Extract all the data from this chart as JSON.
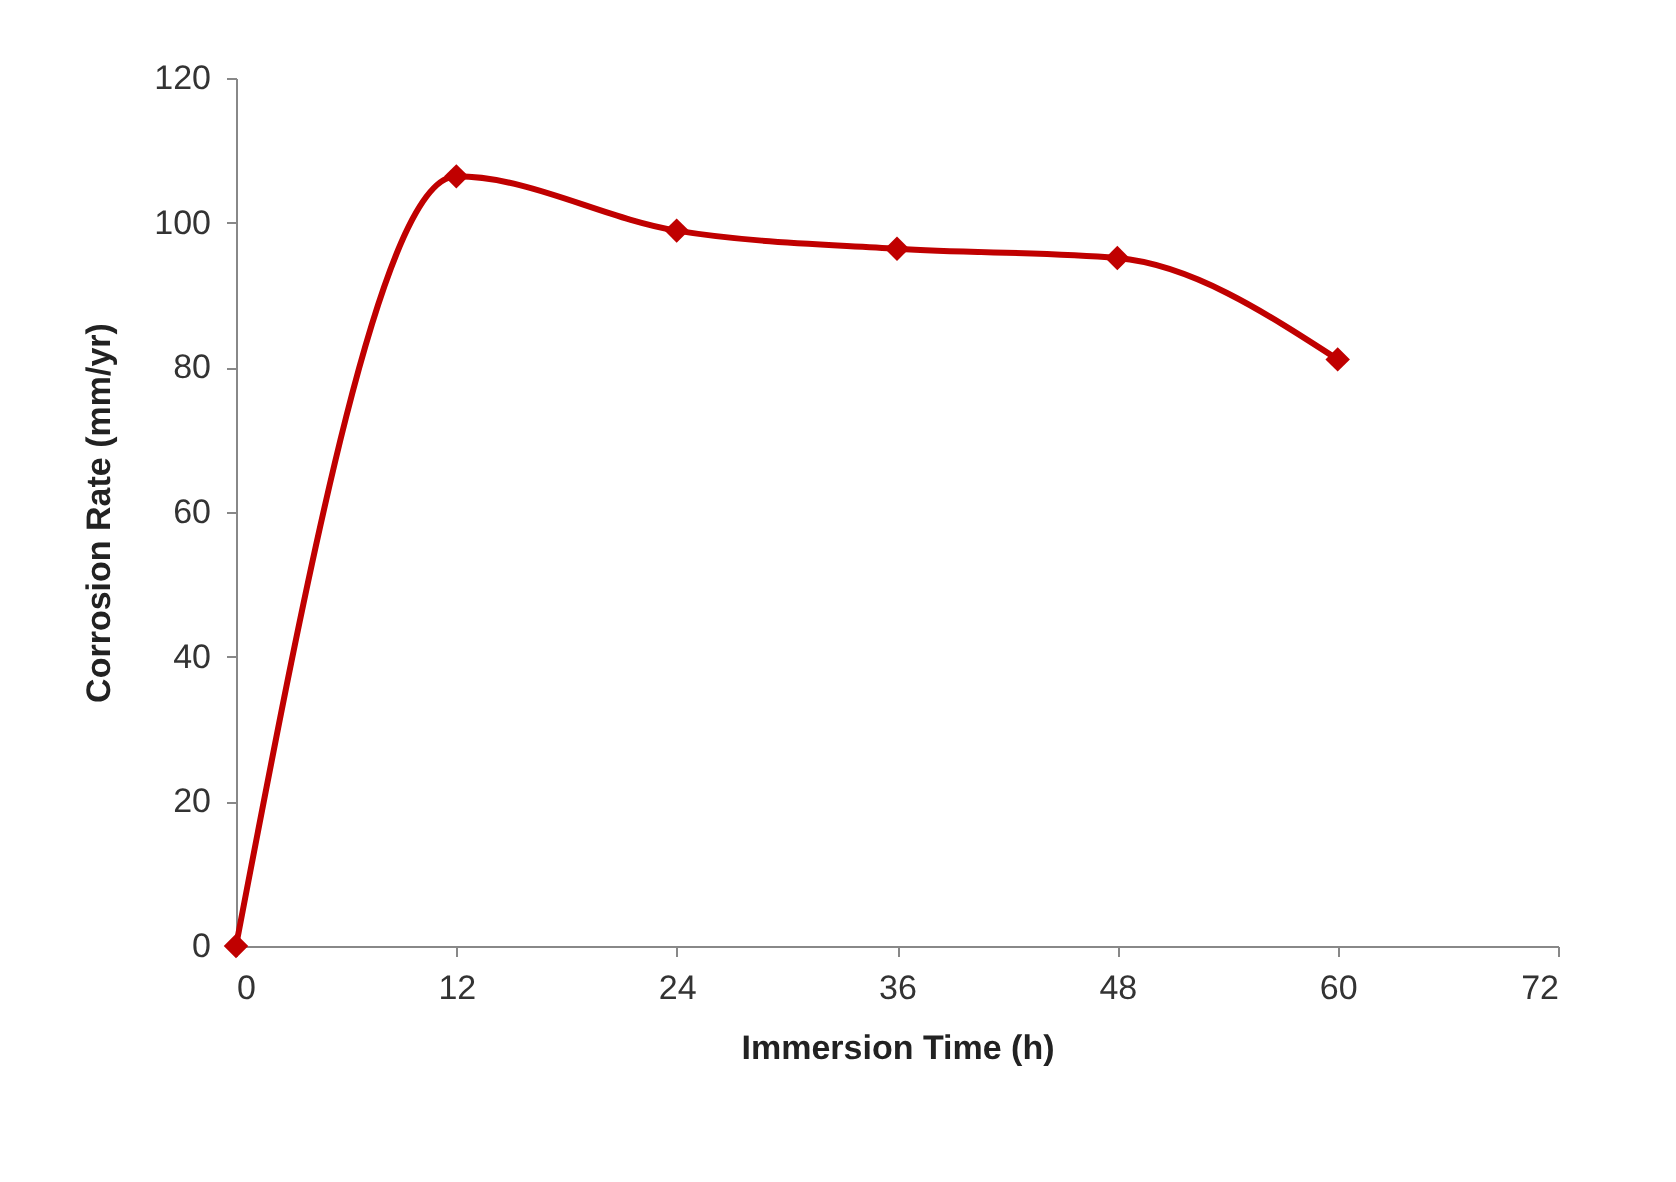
{
  "chart_data": {
    "type": "line",
    "xlabel": "Immersion Time (h)",
    "ylabel": "Corrosion Rate (mm/yr)",
    "x": [
      0,
      12,
      24,
      36,
      48,
      60
    ],
    "series": [
      {
        "color": "#c00000",
        "values": [
          0,
          106.4,
          98.9,
          96.4,
          95.1,
          81.1
        ]
      }
    ],
    "xlim": [
      0,
      72
    ],
    "xticks": [
      0,
      12,
      24,
      36,
      48,
      60,
      72
    ],
    "ylim": [
      0,
      120
    ],
    "yticks": [
      0,
      20,
      40,
      60,
      80,
      100,
      120
    ],
    "marker": "diamond",
    "line_style": "solid"
  }
}
